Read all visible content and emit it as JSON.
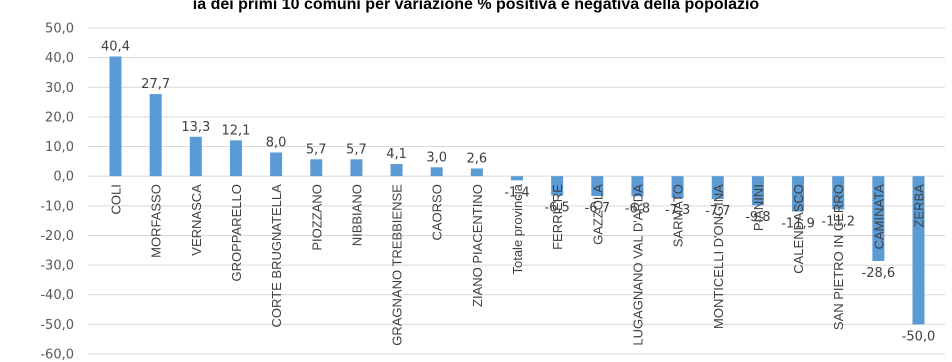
{
  "chart_data": {
    "type": "bar",
    "title": "ia dei primi 10 comuni per variazione % positiva e negativa della popolazio",
    "categories": [
      "COLI",
      "MORFASSO",
      "VERNASCA",
      "GROPPARELLO",
      "CORTE BRUGNATELLA",
      "PIOZZANO",
      "NIBBIANO",
      "GRAGNANO TREBBIENSE",
      "CAORSO",
      "ZIANO PIACENTINO",
      "Totale provincia",
      "FERRIERE",
      "GAZZOLA",
      "LUGAGNANO VAL D'ARDA",
      "SARMATO",
      "MONTICELLI D'ONGINA",
      "PIANINI",
      "CALENDASCO",
      "SAN PIETRO IN CERRO",
      "CAMINATA",
      "ZERBA"
    ],
    "values": [
      40.4,
      27.7,
      13.3,
      12.1,
      8.0,
      5.7,
      5.7,
      4.1,
      3.0,
      2.6,
      -1.4,
      -6.5,
      -6.7,
      -6.8,
      -7.3,
      -7.7,
      -9.8,
      -11.9,
      -11.2,
      -28.6,
      -50.0
    ],
    "data_labels": [
      "40,4",
      "27,7",
      "13,3",
      "12,1",
      "8,0",
      "5,7",
      "5,7",
      "4,1",
      "3,0",
      "2,6",
      "-1,4",
      "-6,5",
      "-6,7",
      "-6,8",
      "-7,3",
      "-7,7",
      "-9,8",
      "-11,9",
      "-11,2",
      "-28,6",
      "-50,0"
    ],
    "yticks": [
      "50,0",
      "40,0",
      "30,0",
      "20,0",
      "10,0",
      "0,0",
      "-10,0",
      "-20,0",
      "-30,0",
      "-40,0",
      "-50,0",
      "-60,0"
    ],
    "ylim": [
      -60,
      50
    ],
    "grid": true,
    "bar_color": "#5b9bd5"
  }
}
